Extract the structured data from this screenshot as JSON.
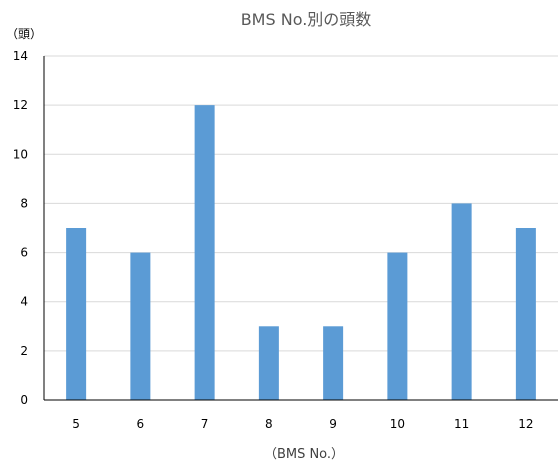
{
  "chart_data": {
    "type": "bar",
    "title": "BMS No.別の頭数",
    "xlabel": "（BMS No.）",
    "ylabel": "（頭）",
    "categories": [
      "5",
      "6",
      "7",
      "8",
      "9",
      "10",
      "11",
      "12"
    ],
    "values": [
      7,
      6,
      12,
      3,
      3,
      6,
      8,
      7
    ],
    "ylim": [
      0,
      14
    ],
    "yticks": [
      "0",
      "2",
      "4",
      "6",
      "8",
      "10",
      "12",
      "14"
    ],
    "grid": true,
    "legend": "none",
    "colors": {
      "bar": "#5b9bd5",
      "grid": "#d9d9d9",
      "axis": "#000000"
    }
  }
}
